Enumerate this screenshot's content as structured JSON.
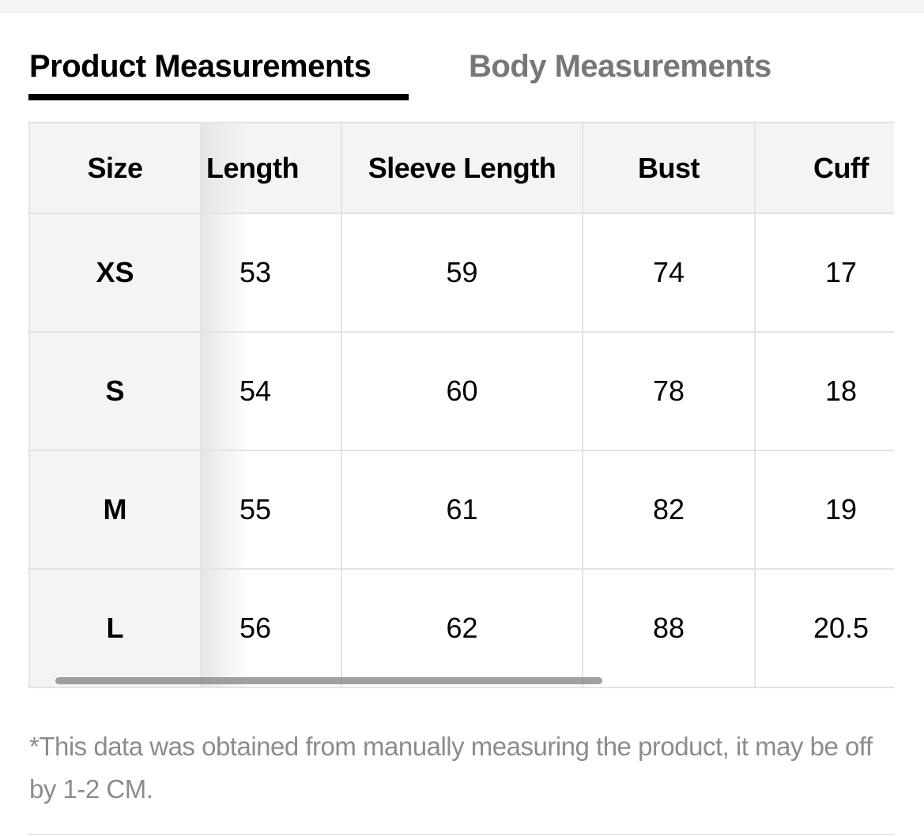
{
  "tabs": [
    {
      "label": "Product Measurements",
      "active": true
    },
    {
      "label": "Body Measurements",
      "active": false
    }
  ],
  "table": {
    "headers": [
      "Size",
      "Length",
      "Sleeve Length",
      "Bust",
      "Cuff"
    ],
    "rows": [
      [
        "XS",
        "53",
        "59",
        "74",
        "17"
      ],
      [
        "S",
        "54",
        "60",
        "78",
        "18"
      ],
      [
        "M",
        "55",
        "61",
        "82",
        "19"
      ],
      [
        "L",
        "56",
        "62",
        "88",
        "20.5"
      ]
    ],
    "horizontal_scroll_position": 0
  },
  "note": "*This data was obtained from manually measuring the product, it may be off by 1-2 CM.",
  "colors": {
    "active_tab": "#000000",
    "inactive_tab": "#777777",
    "header_bg": "#f4f4f4",
    "note_text": "#8c8c8c"
  }
}
